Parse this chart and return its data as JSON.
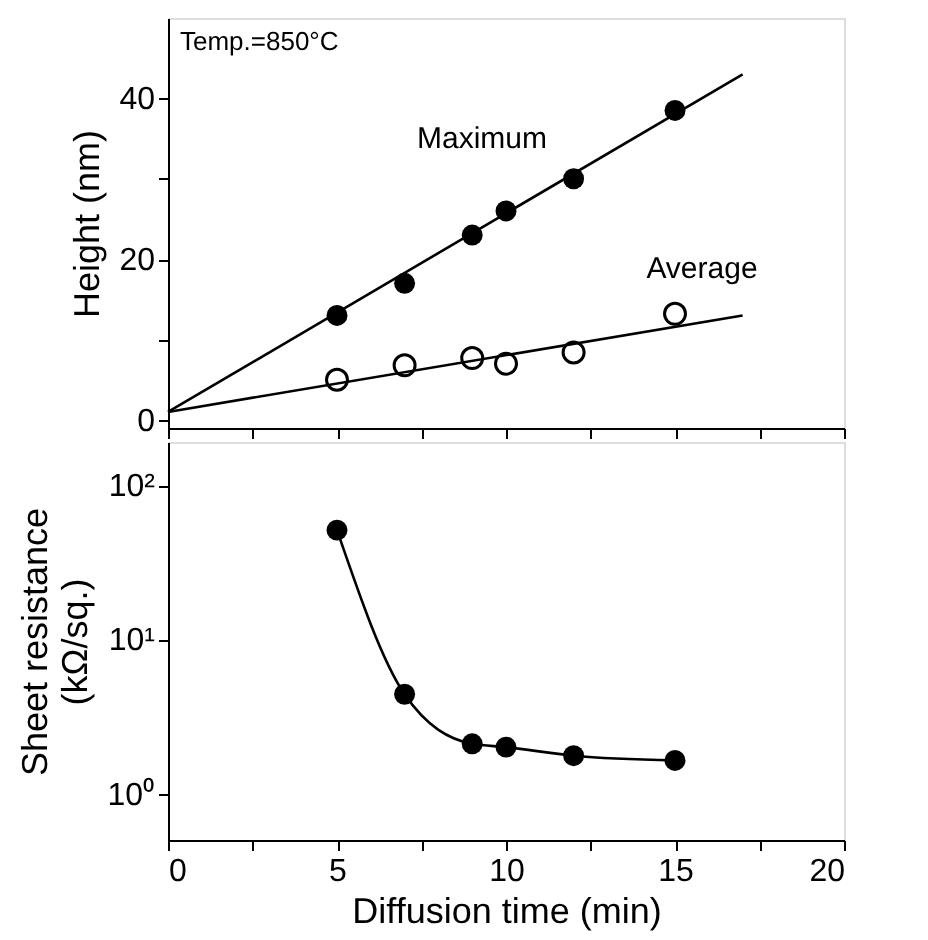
{
  "chart_data": [
    {
      "type": "scatter",
      "ylabel": "Height (nm)",
      "xlim": [
        0,
        20
      ],
      "ylim": [
        -1,
        50
      ],
      "xticks": [
        {
          "value": 0,
          "label": null
        },
        {
          "value": 2.5,
          "label": null
        },
        {
          "value": 5,
          "label": null
        },
        {
          "value": 7.5,
          "label": null
        },
        {
          "value": 10,
          "label": null
        },
        {
          "value": 12.5,
          "label": null
        },
        {
          "value": 15,
          "label": null
        },
        {
          "value": 17.5,
          "label": null
        },
        {
          "value": 20,
          "label": null
        }
      ],
      "yticks": [
        0,
        {
          "value": 10,
          "label": null
        },
        20,
        {
          "value": 30,
          "label": null
        },
        40
      ],
      "tick_labels": "y",
      "grid": false,
      "series": [
        {
          "color": "#000000",
          "marker": "circle",
          "x": [
            5,
            7,
            9,
            10,
            12,
            15
          ],
          "values": [
            13,
            17,
            23,
            26,
            30,
            38.5
          ]
        },
        {
          "color": "#000000",
          "marker": "open circle",
          "x": [
            5,
            7,
            9,
            10,
            12,
            15
          ],
          "values": [
            5,
            6.8,
            7.7,
            7,
            8.4,
            13.2
          ]
        },
        {
          "type": "line",
          "color": "#000000",
          "marker": "none",
          "line_style": "solid",
          "x": [
            0,
            17
          ],
          "values": [
            1,
            43
          ]
        },
        {
          "type": "line",
          "color": "#000000",
          "marker": "none",
          "line_style": "solid",
          "x": [
            0,
            17
          ],
          "values": [
            1,
            13
          ]
        }
      ],
      "annotations": [
        "Temp.=850°C",
        "Maximum",
        "Average"
      ]
    },
    {
      "type": "line",
      "xlabel": "Diffusion time (min)",
      "ylabel": "Sheet resistance\n(kΩ/sq.)",
      "xlim": [
        0,
        20
      ],
      "ylim": [
        0.5,
        190
      ],
      "log": "y",
      "xticks": [
        0,
        {
          "value": 2.5,
          "label": null
        },
        5,
        {
          "value": 7.5,
          "label": null
        },
        10,
        {
          "value": 12.5,
          "label": null
        },
        15,
        {
          "value": 17.5,
          "label": null
        },
        20
      ],
      "yticks": [
        {
          "value": 1,
          "label": "10⁰"
        },
        {
          "value": 10,
          "label": "10¹"
        },
        {
          "value": 100,
          "label": "10²"
        }
      ],
      "grid": false,
      "marker": "circle",
      "line_style": "solid",
      "series": [
        {
          "color": "#000000",
          "x": [
            5,
            7,
            9,
            10,
            12,
            15
          ],
          "values": [
            51,
            4.4,
            2.1,
            2.0,
            1.76,
            1.64
          ]
        }
      ]
    }
  ]
}
